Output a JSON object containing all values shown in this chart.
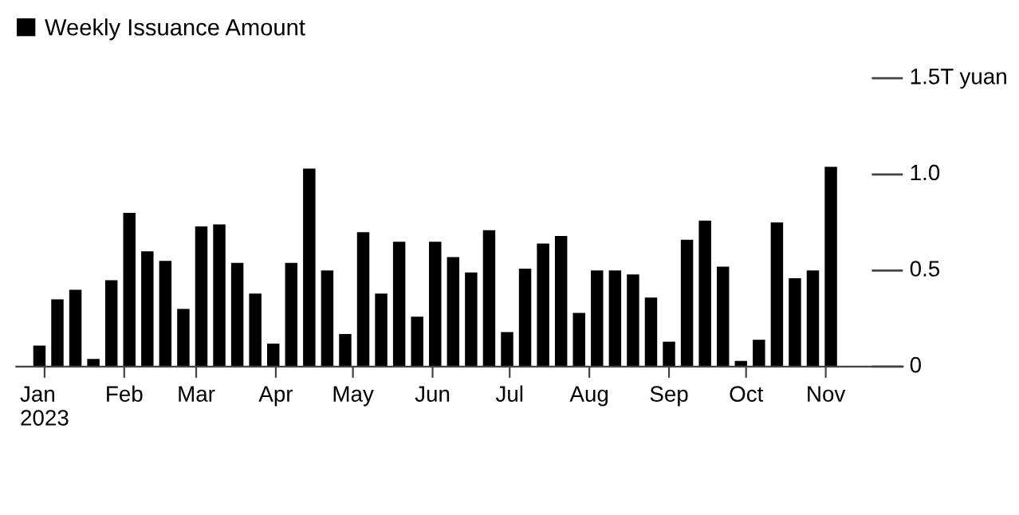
{
  "chart_data": {
    "type": "bar",
    "x": [
      "2022-12-30",
      "2023-01-06",
      "2023-01-13",
      "2023-01-20",
      "2023-01-27",
      "2023-02-03",
      "2023-02-10",
      "2023-02-17",
      "2023-02-24",
      "2023-03-03",
      "2023-03-10",
      "2023-03-17",
      "2023-03-24",
      "2023-03-31",
      "2023-04-07",
      "2023-04-14",
      "2023-04-21",
      "2023-04-28",
      "2023-05-05",
      "2023-05-12",
      "2023-05-19",
      "2023-05-26",
      "2023-06-02",
      "2023-06-09",
      "2023-06-16",
      "2023-06-23",
      "2023-06-30",
      "2023-07-07",
      "2023-07-14",
      "2023-07-21",
      "2023-07-28",
      "2023-08-04",
      "2023-08-11",
      "2023-08-18",
      "2023-08-25",
      "2023-09-01",
      "2023-09-08",
      "2023-09-15",
      "2023-09-22",
      "2023-09-29",
      "2023-10-06",
      "2023-10-13",
      "2023-10-20",
      "2023-10-27",
      "2023-11-03"
    ],
    "series": [
      {
        "name": "Weekly Issuance Amount",
        "color": "#000000",
        "values": [
          0.11,
          0.35,
          0.4,
          0.04,
          0.45,
          0.8,
          0.6,
          0.55,
          0.3,
          0.73,
          0.74,
          0.54,
          0.38,
          0.12,
          0.54,
          1.03,
          0.5,
          0.17,
          0.7,
          0.38,
          0.65,
          0.26,
          0.65,
          0.57,
          0.49,
          0.71,
          0.18,
          0.51,
          0.64,
          0.68,
          0.28,
          0.5,
          0.5,
          0.48,
          0.36,
          0.13,
          0.66,
          0.76,
          0.52,
          0.03,
          0.14,
          0.75,
          0.46,
          0.5,
          1.04
        ]
      }
    ],
    "xlim": [
      "2022-12-21",
      "2023-12-01"
    ],
    "xticks": [
      {
        "value": "2023-01-01",
        "label": "Jan\n2023"
      },
      {
        "value": "2023-02-01",
        "label": "Feb"
      },
      {
        "value": "2023-03-01",
        "label": "Mar"
      },
      {
        "value": "2023-04-01",
        "label": "Apr"
      },
      {
        "value": "2023-05-01",
        "label": "May"
      },
      {
        "value": "2023-06-01",
        "label": "Jun"
      },
      {
        "value": "2023-07-01",
        "label": "Jul"
      },
      {
        "value": "2023-08-01",
        "label": "Aug"
      },
      {
        "value": "2023-09-01",
        "label": "Sep"
      },
      {
        "value": "2023-10-01",
        "label": "Oct"
      },
      {
        "value": "2023-11-01",
        "label": "Nov"
      }
    ],
    "ylim": [
      0,
      1.5
    ],
    "yticks": [
      0,
      0.5,
      {
        "value": 1.0,
        "label": "1.0"
      },
      {
        "value": 1.5,
        "label": "1.5T yuan"
      }
    ],
    "legend": "top left",
    "grid": false
  }
}
